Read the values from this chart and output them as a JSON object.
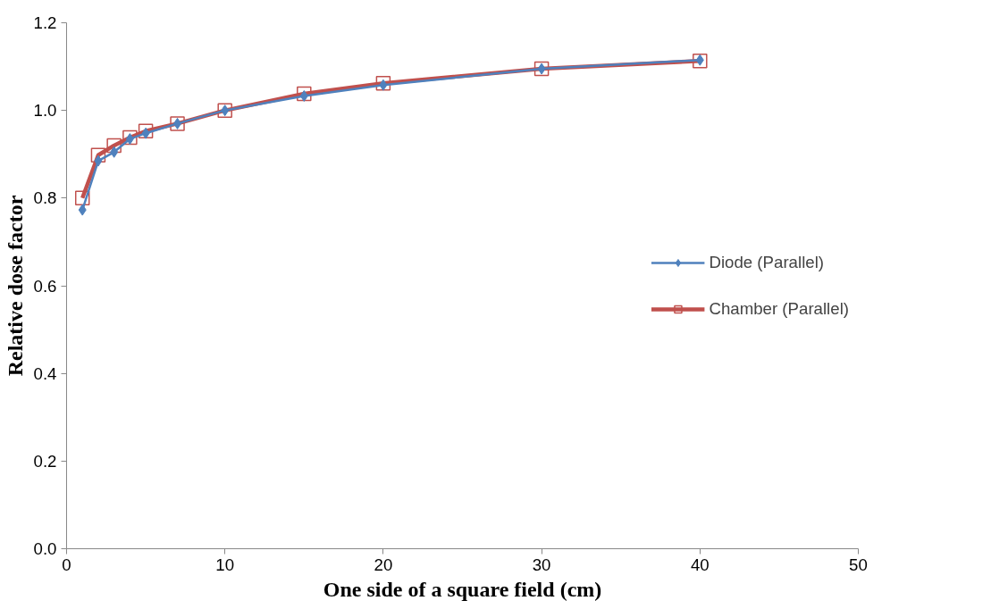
{
  "chart_data": {
    "type": "line",
    "xlabel": "One side of a square field (cm)",
    "ylabel": "Relative dose factor",
    "x": [
      1,
      2,
      3,
      4,
      5,
      7,
      10,
      15,
      20,
      30,
      40
    ],
    "series": [
      {
        "name": "Diode (Parallel)",
        "color": "#4f81bd",
        "marker": "diamond",
        "values": [
          0.773,
          0.885,
          0.905,
          0.935,
          0.948,
          0.97,
          1.0,
          1.033,
          1.058,
          1.095,
          1.115
        ]
      },
      {
        "name": "Chamber (Parallel)",
        "color": "#c0504d",
        "marker": "square",
        "values": [
          0.8,
          0.898,
          0.92,
          0.938,
          0.953,
          0.97,
          1.0,
          1.038,
          1.062,
          1.095,
          1.113
        ]
      }
    ],
    "xlim": [
      0,
      50
    ],
    "xticks": [
      0,
      10,
      20,
      30,
      40,
      50
    ],
    "ylim": [
      0,
      1.2
    ],
    "yticks": [
      {
        "value": 0,
        "label": "0.0"
      },
      {
        "value": 0.2,
        "label": "0.2"
      },
      {
        "value": 0.4,
        "label": "0.4"
      },
      {
        "value": 0.6,
        "label": "0.6"
      },
      {
        "value": 0.8,
        "label": "0.8"
      },
      {
        "value": 1.0,
        "label": "1.0"
      },
      {
        "value": 1.2,
        "label": "1.2"
      }
    ],
    "grid": false,
    "legend": "right",
    "line_style": "solid"
  }
}
